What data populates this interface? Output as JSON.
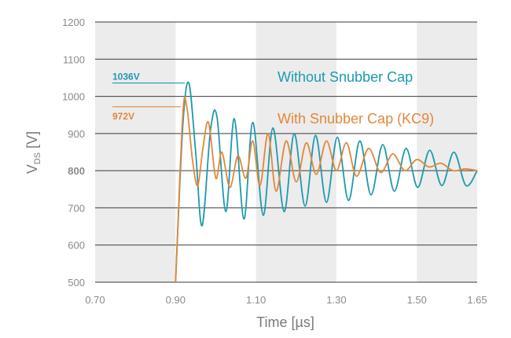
{
  "chart_data": {
    "type": "line",
    "title": "",
    "xlabel": "Time [µs]",
    "ylabel": {
      "main": "V",
      "sub": "DS",
      "unit": " [V]"
    },
    "xlim": [
      0.7,
      1.65
    ],
    "ylim": [
      500,
      1200
    ],
    "x_ticks": [
      "0.70",
      "0.90",
      "1.10",
      "1.30",
      "1.50",
      "1.65"
    ],
    "y_ticks": [
      "500",
      "600",
      "700",
      "800",
      "900",
      "1000",
      "1100",
      "1200"
    ],
    "highlight_tick": {
      "value": 800,
      "label": "800",
      "color": "#b0143c"
    },
    "grid": {
      "horizontal": true,
      "shaded_bands": [
        [
          0.7,
          0.9
        ],
        [
          1.1,
          1.3
        ],
        [
          1.5,
          1.65
        ]
      ]
    },
    "series": [
      {
        "name": "Without Snubber Cap",
        "color": "#1e9aad",
        "peak_label": "1036V",
        "peak_value": 1036,
        "points": [
          [
            0.9,
            500
          ],
          [
            0.918,
            920
          ],
          [
            0.933,
            1036
          ],
          [
            0.95,
            850
          ],
          [
            0.966,
            652
          ],
          [
            0.987,
            910
          ],
          [
            1.003,
            945
          ],
          [
            1.025,
            690
          ],
          [
            1.046,
            940
          ],
          [
            1.07,
            670
          ],
          [
            1.092,
            930
          ],
          [
            1.118,
            680
          ],
          [
            1.142,
            915
          ],
          [
            1.17,
            690
          ],
          [
            1.195,
            900
          ],
          [
            1.222,
            705
          ],
          [
            1.248,
            895
          ],
          [
            1.275,
            715
          ],
          [
            1.302,
            890
          ],
          [
            1.33,
            720
          ],
          [
            1.358,
            880
          ],
          [
            1.386,
            735
          ],
          [
            1.415,
            870
          ],
          [
            1.444,
            745
          ],
          [
            1.473,
            860
          ],
          [
            1.502,
            755
          ],
          [
            1.532,
            855
          ],
          [
            1.562,
            760
          ],
          [
            1.592,
            850
          ],
          [
            1.622,
            760
          ],
          [
            1.65,
            800
          ]
        ]
      },
      {
        "name": "With Snubber Cap (KC9)",
        "color": "#e2883a",
        "peak_label": "972V",
        "peak_value": 972,
        "points": [
          [
            0.9,
            500
          ],
          [
            0.918,
            950
          ],
          [
            0.928,
            972
          ],
          [
            0.942,
            830
          ],
          [
            0.955,
            760
          ],
          [
            0.968,
            860
          ],
          [
            0.982,
            930
          ],
          [
            1.0,
            780
          ],
          [
            1.015,
            850
          ],
          [
            1.035,
            755
          ],
          [
            1.055,
            840
          ],
          [
            1.075,
            780
          ],
          [
            1.092,
            880
          ],
          [
            1.11,
            760
          ],
          [
            1.13,
            900
          ],
          [
            1.15,
            745
          ],
          [
            1.175,
            880
          ],
          [
            1.2,
            770
          ],
          [
            1.225,
            875
          ],
          [
            1.25,
            790
          ],
          [
            1.275,
            880
          ],
          [
            1.3,
            800
          ],
          [
            1.325,
            875
          ],
          [
            1.35,
            785
          ],
          [
            1.38,
            860
          ],
          [
            1.41,
            795
          ],
          [
            1.44,
            845
          ],
          [
            1.47,
            800
          ],
          [
            1.5,
            830
          ],
          [
            1.53,
            810
          ],
          [
            1.56,
            820
          ],
          [
            1.59,
            800
          ],
          [
            1.62,
            805
          ],
          [
            1.65,
            800
          ]
        ]
      }
    ]
  }
}
